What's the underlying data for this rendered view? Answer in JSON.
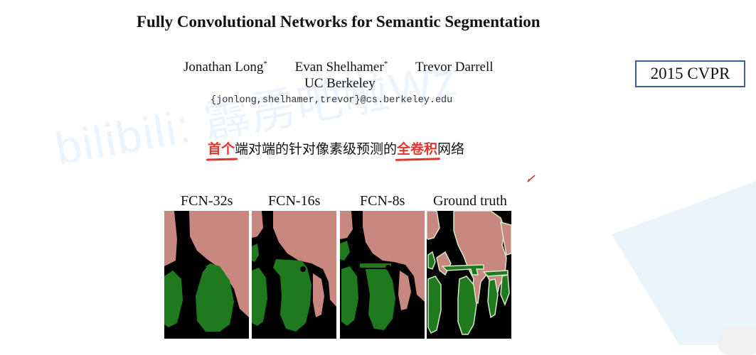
{
  "paper": {
    "title": "Fully Convolutional Networks for Semantic Segmentation",
    "authors": [
      {
        "name": "Jonathan Long",
        "mark": "*"
      },
      {
        "name": "Evan Shelhamer",
        "mark": "*"
      },
      {
        "name": "Trevor Darrell",
        "mark": ""
      }
    ],
    "affiliation": "UC Berkeley",
    "email": "{jonlong,shelhamer,trevor}@cs.berkeley.edu"
  },
  "badge": "2015 CVPR",
  "annotation": {
    "part1": "首个",
    "part2": "端对端的针对像素级预测的",
    "part3": "全卷积",
    "part4": "网络"
  },
  "watermark": "bilibili: 霹雳吧啦Wz",
  "figure": {
    "panels": [
      {
        "label": "FCN-32s"
      },
      {
        "label": "FCN-16s"
      },
      {
        "label": "FCN-8s"
      },
      {
        "label": "Ground truth"
      }
    ],
    "colors": {
      "background": "#000000",
      "person": "#c88880",
      "bicycle": "#1f7a1f",
      "boundary": "#d8e8c8"
    }
  },
  "colors": {
    "highlight": "#e3342f",
    "badge_border": "#3f5f9a"
  }
}
